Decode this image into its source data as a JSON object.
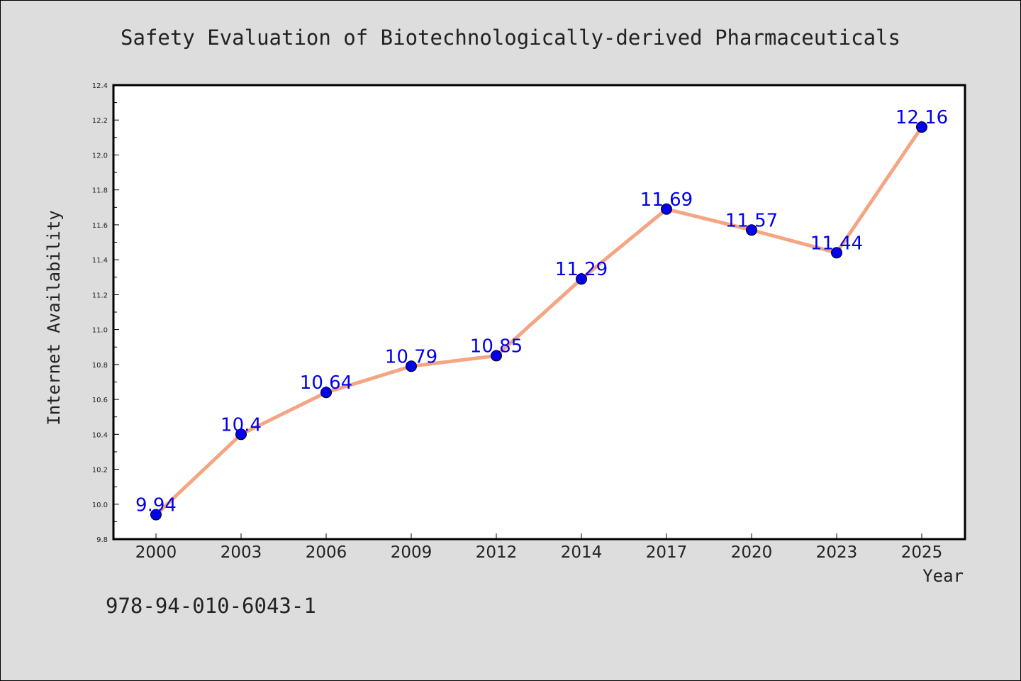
{
  "chart_data": {
    "type": "line",
    "title": "Safety Evaluation of Biotechnologically-derived Pharmaceuticals",
    "xlabel": "Year",
    "ylabel": "Internet Availability",
    "categories": [
      "2000",
      "2003",
      "2006",
      "2009",
      "2012",
      "2014",
      "2017",
      "2020",
      "2023",
      "2025"
    ],
    "series": [
      {
        "values": [
          9.94,
          10.4,
          10.64,
          10.79,
          10.85,
          11.29,
          11.69,
          11.57,
          11.44,
          12.16
        ],
        "data_labels": [
          "9.94",
          "10.4",
          "10.64",
          "10.79",
          "10.85",
          "11.29",
          "11.69",
          "11.57",
          "11.44",
          "12.16"
        ],
        "line_color": "#f4a582",
        "marker_color": "#0000ee"
      }
    ],
    "ylim": [
      9.8,
      12.4
    ],
    "yticks": [
      9.8,
      10.0,
      10.2,
      10.4,
      10.6,
      10.8,
      11.0,
      11.2,
      11.4,
      11.6,
      11.8,
      12.0,
      12.2,
      12.4
    ],
    "ytick_labels": [
      "9.8",
      "10.0",
      "10.2",
      "10.4",
      "10.6",
      "10.8",
      "11.0",
      "11.2",
      "11.4",
      "11.6",
      "11.8",
      "12.0",
      "12.2",
      "12.4"
    ],
    "grid": false,
    "legend": "none"
  },
  "footer": {
    "isbn": "978-94-010-6043-1"
  },
  "colors": {
    "background": "#dddddd",
    "plot_background": "#ffffff",
    "line": "#f4a582",
    "marker": "#0000ee",
    "data_label": "#0000ee"
  }
}
